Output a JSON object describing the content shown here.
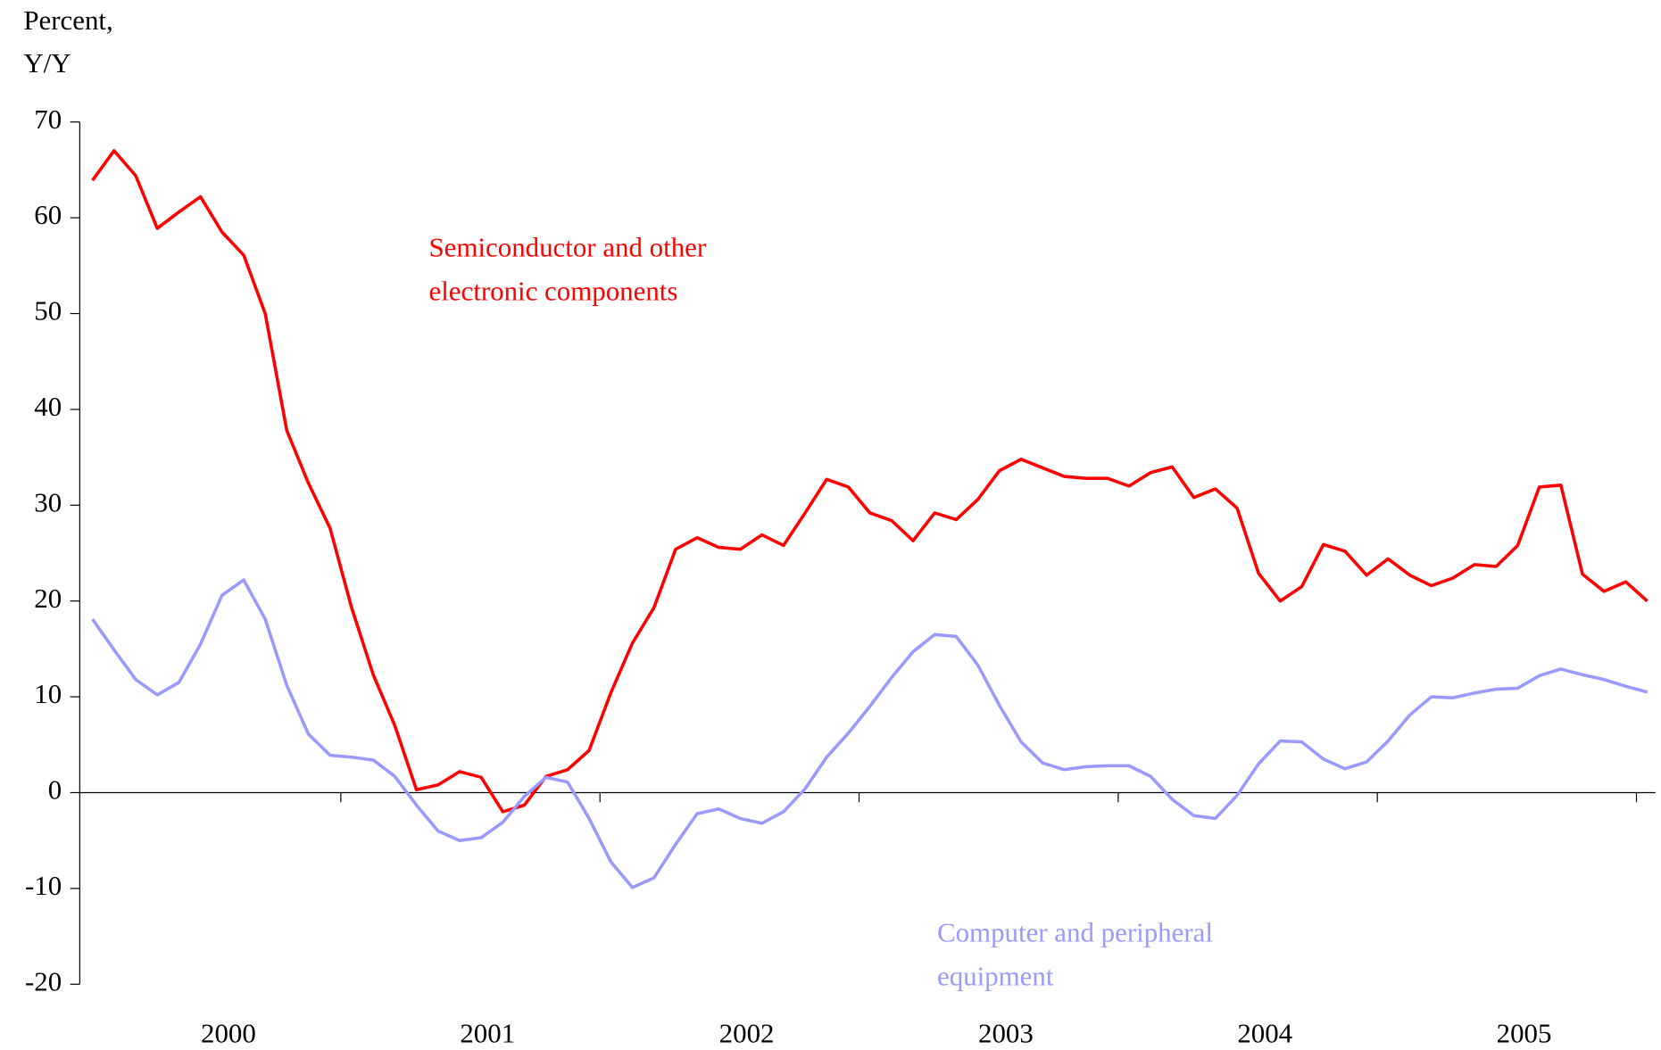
{
  "chart_data": {
    "type": "line",
    "ylabel": [
      "Percent,",
      "Y/Y"
    ],
    "categories": [
      null,
      null,
      null,
      null,
      null,
      null,
      "2000",
      null,
      null,
      null,
      null,
      null,
      null,
      null,
      null,
      null,
      null,
      null,
      "2001",
      null,
      null,
      null,
      null,
      null,
      null,
      null,
      null,
      null,
      null,
      null,
      "2002",
      null,
      null,
      null,
      null,
      null,
      null,
      null,
      null,
      null,
      null,
      null,
      "2003",
      null,
      null,
      null,
      null,
      null,
      null,
      null,
      null,
      null,
      null,
      null,
      "2004",
      null,
      null,
      null,
      null,
      null,
      null,
      null,
      null,
      null,
      null,
      null,
      "2005",
      null,
      null,
      null,
      null,
      null,
      null
    ],
    "ylim": [
      -20,
      70
    ],
    "yticks": [
      -20,
      -10,
      0,
      10,
      20,
      30,
      40,
      50,
      60,
      70
    ],
    "series": [
      {
        "label": [
          "Semiconductor and other",
          "electronic components"
        ],
        "color": "#ff0000",
        "values": [
          63.9,
          67.0,
          64.4,
          58.9,
          60.6,
          62.2,
          58.5,
          56.1,
          50.0,
          37.8,
          32.3,
          27.6,
          19.3,
          12.3,
          7.0,
          0.3,
          0.8,
          2.2,
          1.6,
          -2.0,
          -1.3,
          1.7,
          2.4,
          4.4,
          10.4,
          15.6,
          19.3,
          25.4,
          26.6,
          25.6,
          25.4,
          26.9,
          25.8,
          29.2,
          32.7,
          31.9,
          29.2,
          28.4,
          26.3,
          29.2,
          28.5,
          30.6,
          33.6,
          34.8,
          33.9,
          33.0,
          32.8,
          32.8,
          32.0,
          33.4,
          34.0,
          30.8,
          31.7,
          29.7,
          22.9,
          20.0,
          21.5,
          25.9,
          25.2,
          22.7,
          24.4,
          22.7,
          21.6,
          22.4,
          23.8,
          23.6,
          25.8,
          31.9,
          32.1,
          22.8,
          21.0,
          22.0,
          20.0
        ]
      },
      {
        "label": [
          "Computer and peripheral",
          "equipment"
        ],
        "color": "#9999ff",
        "values": [
          18.1,
          14.9,
          11.8,
          10.2,
          11.5,
          15.5,
          20.6,
          22.2,
          18.1,
          11.2,
          6.1,
          3.9,
          3.7,
          3.4,
          1.7,
          -1.3,
          -4.0,
          -5.0,
          -4.7,
          -3.1,
          -0.4,
          1.6,
          1.1,
          -2.7,
          -7.2,
          -9.9,
          -8.9,
          -5.4,
          -2.2,
          -1.7,
          -2.7,
          -3.2,
          -2.0,
          0.4,
          3.7,
          6.2,
          9.0,
          12.0,
          14.7,
          16.5,
          16.3,
          13.3,
          9.1,
          5.3,
          3.1,
          2.4,
          2.7,
          2.8,
          2.8,
          1.7,
          -0.7,
          -2.4,
          -2.7,
          -0.3,
          3.0,
          5.4,
          5.3,
          3.5,
          2.5,
          3.2,
          5.4,
          8.1,
          10.0,
          9.9,
          10.4,
          10.8,
          10.9,
          12.2,
          12.9,
          12.3,
          11.8,
          11.1,
          10.5
        ]
      }
    ]
  }
}
